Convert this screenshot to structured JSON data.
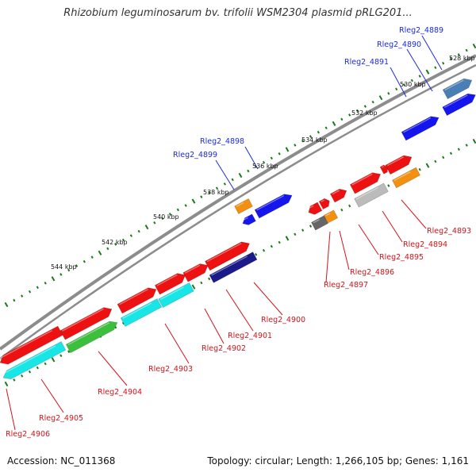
{
  "title": "Rhizobium leguminosarum bv. trifolii WSM2304 plasmid pRLG201...",
  "footer": {
    "accession": "Accession: NC_011368",
    "summary": "Topology: circular; Length: 1,266,105 bp; Genes: 1,161"
  },
  "colors": {
    "backbone": "#8c8c8c",
    "tick_green": "#1a7a1a",
    "red": "#ee1111",
    "blue": "#1515ee",
    "orange": "#f39010",
    "cyan": "#18e6e6",
    "green": "#3cbf3c",
    "grey": "#bbbbbb",
    "darkgrey": "#666666",
    "steel": "#4a7fb5",
    "navy": "#1a1a8a",
    "label_blue": "#1c2bd6",
    "label_red": "#d1141a"
  },
  "scale_labels": [
    "528 kbp",
    "530 kbp",
    "532 kbp",
    "534 kbp",
    "536 kbp",
    "538 kbp",
    "540 kbp",
    "542 kbp",
    "544 kbp"
  ],
  "top_labels": [
    "Rleg2_4889",
    "Rleg2_4890",
    "Rleg2_4891",
    "Rleg2_4898",
    "Rleg2_4899"
  ],
  "bottom_labels": [
    "Rleg2_4893",
    "Rleg2_4894",
    "Rleg2_4895",
    "Rleg2_4896",
    "Rleg2_4897",
    "Rleg2_4900",
    "Rleg2_4901",
    "Rleg2_4902",
    "Rleg2_4903",
    "Rleg2_4904",
    "Rleg2_4905",
    "Rleg2_4906"
  ]
}
